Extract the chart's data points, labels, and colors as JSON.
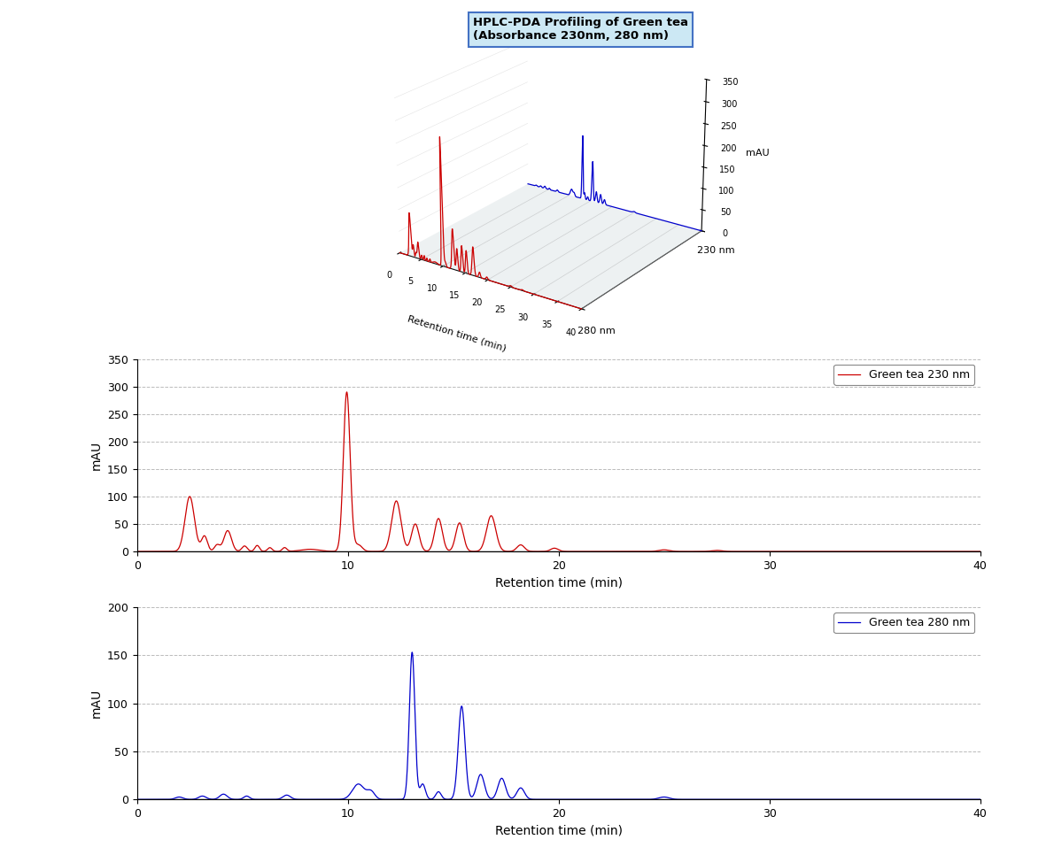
{
  "title_3d_line1": "HPLC-PDA Profiling of Green tea",
  "title_3d_line2": "(Absorbance 230nm, 280 nm)",
  "xlabel_3d": "Retention time (min)",
  "ylabel_230_label": "230 nm",
  "ylabel_280_label": "280 nm",
  "zlabel": "mAU",
  "xlabel_2d": "Retention time (min)",
  "ylabel_2d": "mAU",
  "legend_230": "Green tea 230 nm",
  "legend_280": "Green tea 280 nm",
  "color_230": "#cc0000",
  "color_280": "#0000cc",
  "bg_color": "#ffffff",
  "grid_color": "#aaaaaa",
  "yticks_230": [
    0,
    50,
    100,
    150,
    200,
    250,
    300,
    350
  ],
  "yticks_280": [
    0,
    50,
    100,
    150,
    200
  ],
  "xticks_2d": [
    0,
    10,
    20,
    30,
    40
  ],
  "xlim_2d": [
    0,
    40
  ],
  "ylim_230": [
    0,
    350
  ],
  "ylim_280": [
    0,
    200
  ],
  "title_box_facecolor": "#cce8f4",
  "title_box_edgecolor": "#4472c4"
}
